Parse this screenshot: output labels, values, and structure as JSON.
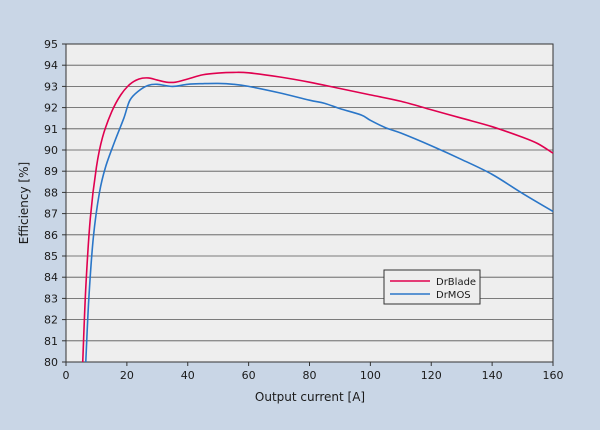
{
  "chart_data": {
    "type": "line",
    "title": "",
    "xlabel": "Output current [A]",
    "ylabel": "Efficiency [%]",
    "xlim": [
      0,
      160
    ],
    "ylim": [
      80,
      95
    ],
    "x_ticks": [
      0,
      20,
      40,
      60,
      80,
      100,
      120,
      140,
      160
    ],
    "y_ticks": [
      80,
      81,
      82,
      83,
      84,
      85,
      86,
      87,
      88,
      89,
      90,
      91,
      92,
      93,
      94,
      95
    ],
    "grid": "horizontal",
    "legend_position": "bottom-right",
    "colors": {
      "plot_bg": "#eeeeee",
      "page_bg": "#c9d6e6",
      "grid": "#555555"
    },
    "series": [
      {
        "name": "DrBlade",
        "color": "#e0004f",
        "x": [
          5.5,
          6.5,
          8,
          10,
          12,
          15,
          18,
          21,
          24,
          27,
          30,
          33,
          36,
          40,
          45,
          50,
          55,
          60,
          70,
          80,
          90,
          100,
          110,
          120,
          130,
          140,
          150,
          155,
          160
        ],
        "y": [
          80.0,
          83.5,
          86.8,
          89.2,
          90.6,
          91.8,
          92.6,
          93.1,
          93.35,
          93.4,
          93.3,
          93.2,
          93.2,
          93.35,
          93.55,
          93.63,
          93.66,
          93.64,
          93.45,
          93.2,
          92.9,
          92.6,
          92.3,
          91.9,
          91.5,
          91.1,
          90.6,
          90.3,
          89.85
        ]
      },
      {
        "name": "DrMOS",
        "color": "#2a76c8",
        "x": [
          6.5,
          7.5,
          9,
          11,
          13,
          16,
          19,
          21,
          24,
          27,
          30,
          35,
          40,
          45,
          50,
          55,
          60,
          70,
          80,
          85,
          90,
          97,
          100,
          105,
          110,
          120,
          130,
          140,
          150,
          160
        ],
        "y": [
          80.0,
          83.0,
          85.9,
          88.0,
          89.2,
          90.4,
          91.5,
          92.35,
          92.8,
          93.05,
          93.1,
          93.0,
          93.1,
          93.13,
          93.14,
          93.1,
          93.0,
          92.7,
          92.35,
          92.2,
          91.95,
          91.65,
          91.4,
          91.05,
          90.8,
          90.2,
          89.55,
          88.85,
          87.95,
          87.1
        ]
      }
    ]
  }
}
